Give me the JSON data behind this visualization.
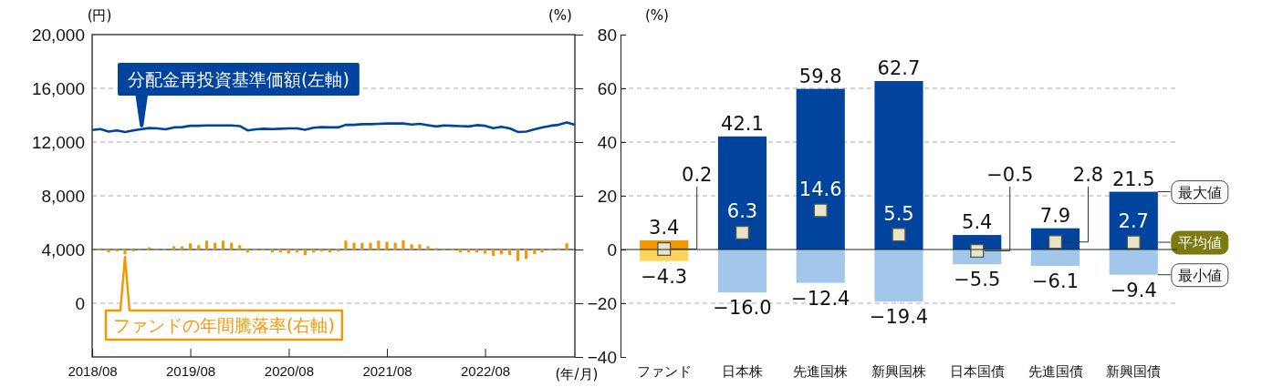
{
  "chart_data": [
    {
      "type": "line",
      "xlabel": "(年/月)",
      "ylabel": "(円)",
      "y2label": "(%)",
      "x": [
        "2018-08",
        "2018-09",
        "2018-10",
        "2018-11",
        "2018-12",
        "2019-01",
        "2019-02",
        "2019-03",
        "2019-04",
        "2019-05",
        "2019-06",
        "2019-07",
        "2019-08",
        "2019-09",
        "2019-10",
        "2019-11",
        "2019-12",
        "2020-01",
        "2020-02",
        "2020-03",
        "2020-04",
        "2020-05",
        "2020-06",
        "2020-07",
        "2020-08",
        "2020-09",
        "2020-10",
        "2020-11",
        "2020-12",
        "2021-01",
        "2021-02",
        "2021-03",
        "2021-04",
        "2021-05",
        "2021-06",
        "2021-07",
        "2021-08",
        "2021-09",
        "2021-10",
        "2021-11",
        "2021-12",
        "2022-01",
        "2022-02",
        "2022-03",
        "2022-04",
        "2022-05",
        "2022-06",
        "2022-07",
        "2022-08",
        "2022-09",
        "2022-10",
        "2022-11",
        "2022-12",
        "2023-01",
        "2023-02",
        "2023-03",
        "2023-04",
        "2023-05",
        "2023-06",
        "2023-07"
      ],
      "xlim": [
        "2018-08",
        "2023-07"
      ],
      "xticks": [
        {
          "value": "2018-08",
          "label": "2018/08"
        },
        {
          "value": "2019-08",
          "label": "2019/08"
        },
        {
          "value": "2020-08",
          "label": "2020/08"
        },
        {
          "value": "2021-08",
          "label": "2021/08"
        },
        {
          "value": "2022-08",
          "label": "2022/08"
        }
      ],
      "ylim": [
        -4000,
        20000
      ],
      "yticks": [
        0,
        {
          "value": 4000,
          "label": "4,000"
        },
        {
          "value": 8000,
          "label": "8,000"
        },
        {
          "value": 12000,
          "label": "12,000"
        },
        {
          "value": 16000,
          "label": "16,000"
        },
        {
          "value": 20000,
          "label": "20,000"
        }
      ],
      "y2lim": [
        -40,
        80
      ],
      "y2ticks": [
        {
          "value": -40,
          "label": "−40"
        },
        {
          "value": -20,
          "label": "−20"
        },
        0,
        20,
        40,
        60,
        80
      ],
      "grid": "y",
      "series": [
        {
          "name": "分配金再投資基準価額(左軸)",
          "type": "line",
          "color": "#00449e",
          "values": [
            12900,
            12970,
            12780,
            12870,
            12750,
            12870,
            12970,
            13040,
            13020,
            12950,
            13090,
            13110,
            13210,
            13210,
            13240,
            13240,
            13240,
            13240,
            13190,
            12870,
            12950,
            12990,
            12970,
            12990,
            13020,
            13020,
            12920,
            13070,
            13110,
            13090,
            13090,
            13280,
            13280,
            13330,
            13330,
            13360,
            13380,
            13380,
            13380,
            13310,
            13360,
            13260,
            13160,
            13240,
            13210,
            13190,
            13160,
            13260,
            13210,
            13040,
            13140,
            13020,
            12750,
            12780,
            12950,
            13090,
            13210,
            13280,
            13450,
            13280
          ]
        },
        {
          "name": "ファンドの年間騰落率(右軸)",
          "type": "bar",
          "axis": "y2",
          "color": "#f39800",
          "values": [
            null,
            0.5,
            -1.1,
            -0.7,
            -1.8,
            -0.7,
            0,
            0.8,
            0,
            null,
            1.2,
            1.2,
            2.3,
            1.6,
            3.3,
            2.5,
            3.3,
            2.5,
            1.6,
            -1.1,
            -0.4,
            0,
            -1.1,
            -1.1,
            -1.5,
            -1.1,
            -2.1,
            -1.1,
            -0.7,
            -1.1,
            -0.7,
            3.3,
            2.5,
            2.5,
            2.5,
            3.3,
            2.9,
            2.5,
            3.4,
            1.9,
            1.9,
            1.2,
            0.5,
            -0.4,
            -0.4,
            -1.1,
            -1.1,
            -1.1,
            -1.5,
            -2.4,
            -1.8,
            -2.1,
            -4.3,
            -3.5,
            -1.7,
            -1.1,
            -0.4,
            0.5,
            2.3,
            null
          ]
        }
      ]
    },
    {
      "type": "bar",
      "ylabel": "(%)",
      "stacked": true,
      "grid": "y",
      "tick_labels": "x",
      "categories": [
        "ファンド",
        "日本株",
        "先進国株",
        "新興国株",
        "日本国債",
        "先進国債",
        "新興国債"
      ],
      "ylim": [
        -40,
        80
      ],
      "yticks": [
        -40,
        -20,
        0,
        20,
        40,
        60,
        80
      ],
      "series": [
        {
          "name": "最大値",
          "values": [
            3.4,
            42.1,
            59.8,
            62.7,
            5.4,
            7.9,
            21.5
          ],
          "value_labels": [
            "3.4",
            "42.1",
            "59.8",
            "62.7",
            "5.4",
            "7.9",
            "21.5"
          ],
          "colors": [
            "#f39800",
            "#00449e",
            "#00449e",
            "#00449e",
            "#00449e",
            "#00449e",
            "#00449e"
          ]
        },
        {
          "name": "最小値",
          "values": [
            -4.3,
            -16.0,
            -12.4,
            -19.4,
            -5.5,
            -6.1,
            -9.4
          ],
          "value_labels": [
            "−4.3",
            "−16.0",
            "−12.4",
            "−19.4",
            "−5.5",
            "−6.1",
            "−9.4"
          ],
          "colors": [
            "#fdd35c",
            "#a3c6eb",
            "#a3c6eb",
            "#a3c6eb",
            "#a3c6eb",
            "#a3c6eb",
            "#a3c6eb"
          ]
        },
        {
          "name": "平均値",
          "type": "scatter",
          "marker": "square",
          "color": "#e8e4c4",
          "values": [
            0.2,
            6.3,
            14.6,
            5.5,
            -0.5,
            2.8,
            2.7
          ],
          "value_labels": [
            "0.2",
            "6.3",
            "14.6",
            "5.5",
            "−0.5",
            "2.8",
            "2.7"
          ]
        }
      ]
    }
  ]
}
